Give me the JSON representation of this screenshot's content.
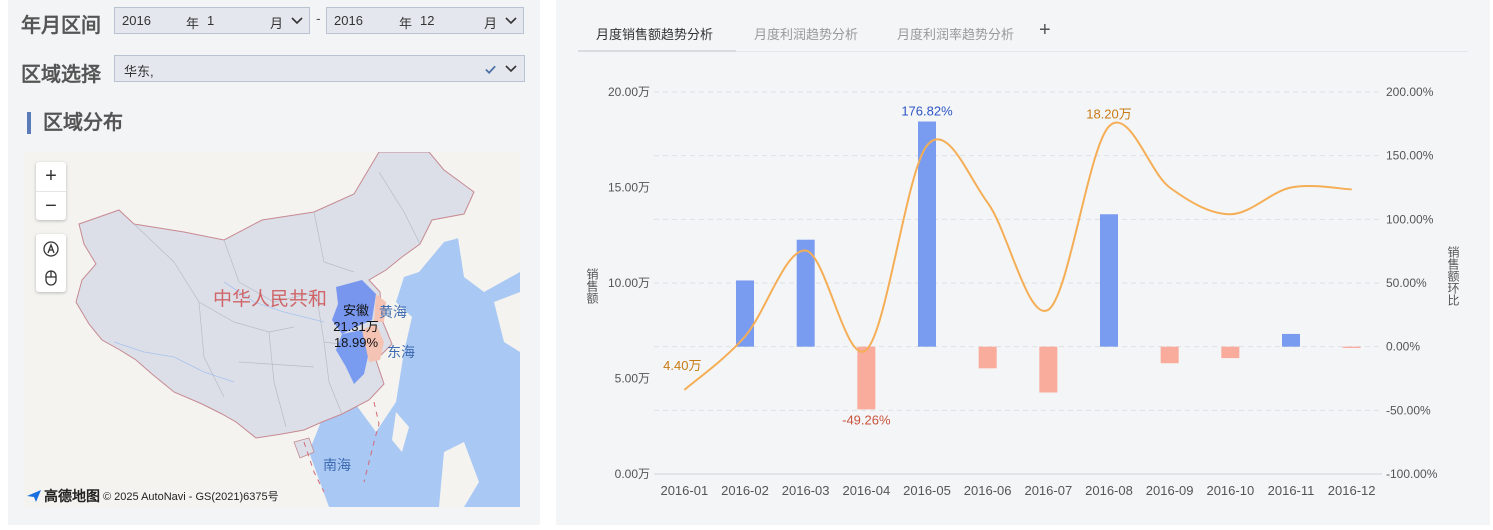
{
  "filters": {
    "date_range_label": "年月区间",
    "start": {
      "year": "2016",
      "year_unit": "年",
      "month": "1",
      "month_unit": "月"
    },
    "separator": "-",
    "end": {
      "year": "2016",
      "year_unit": "年",
      "month": "12",
      "month_unit": "月"
    },
    "region_label": "区域选择",
    "region_value": "华东,"
  },
  "map_section": {
    "title": "区域分布",
    "country_label": "中华人民共和",
    "sea_labels": [
      "黄海",
      "东海",
      "南海"
    ],
    "highlight": {
      "name": "安徽",
      "amount": "21.31万",
      "share": "18.99%"
    },
    "attribution_logo": "高德地图",
    "attribution": "© 2025 AutoNavi - GS(2021)6375号",
    "zoom_in": "+",
    "zoom_out": "−"
  },
  "tabs": [
    "月度销售额趋势分析",
    "月度利润趋势分析",
    "月度利润率趋势分析"
  ],
  "add_tab_label": "+",
  "colors": {
    "bar_up": "#7a9cf0",
    "bar_down": "#f9ab9c",
    "line": "#f5ae56",
    "label_blue": "#2d56c4",
    "label_orange": "#c97a12",
    "label_red": "#c8543c"
  },
  "chart_data": {
    "type": "bar",
    "categories": [
      "2016-01",
      "2016-02",
      "2016-03",
      "2016-04",
      "2016-05",
      "2016-06",
      "2016-07",
      "2016-08",
      "2016-09",
      "2016-10",
      "2016-11",
      "2016-12"
    ],
    "ylabel": "销售额",
    "y2label": "销售额环比",
    "ylim": [
      0,
      20
    ],
    "y2lim": [
      -100,
      200
    ],
    "yticks": [
      "0.00万",
      "5.00万",
      "10.00万",
      "15.00万",
      "20.00万"
    ],
    "y2ticks": [
      "-100.00%",
      "-50.00%",
      "0.00%",
      "50.00%",
      "100.00%",
      "150.00%",
      "200.00%"
    ],
    "series": [
      {
        "type": "bar",
        "axis": "right",
        "values": [
          null,
          52,
          84,
          -49.26,
          176.82,
          -17,
          -36,
          104,
          -13,
          -9,
          10,
          -1
        ]
      },
      {
        "type": "line",
        "axis": "left",
        "values": [
          4.4,
          7.2,
          11.7,
          6.5,
          17.2,
          14.2,
          8.6,
          18.2,
          15.0,
          13.6,
          15.0,
          14.9
        ]
      }
    ],
    "annotations": [
      {
        "category": "2016-01",
        "text": "4.40万",
        "color": "orange"
      },
      {
        "category": "2016-04",
        "text": "-49.26%",
        "color": "red"
      },
      {
        "category": "2016-05",
        "text": "176.82%",
        "color": "blue"
      },
      {
        "category": "2016-08",
        "text": "18.20万",
        "color": "orange"
      }
    ],
    "grid": true
  }
}
